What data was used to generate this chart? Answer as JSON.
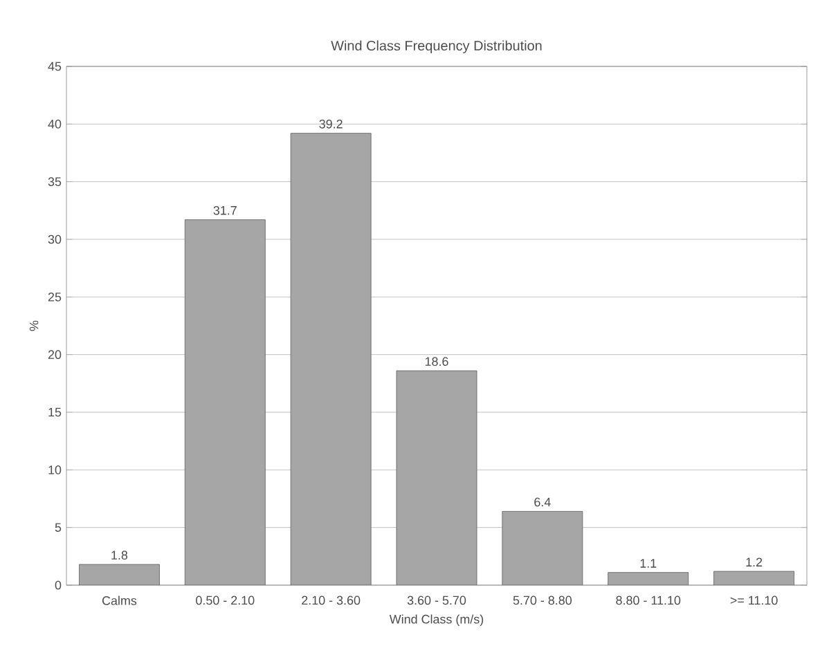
{
  "chart_data": {
    "type": "bar",
    "title": "Wind Class Frequency Distribution",
    "xlabel": "Wind Class (m/s)",
    "ylabel": "%",
    "categories": [
      "Calms",
      "0.50 - 2.10",
      "2.10 - 3.60",
      "3.60 - 5.70",
      "5.70 - 8.80",
      "8.80 - 11.10",
      ">= 11.10"
    ],
    "values": [
      1.8,
      31.7,
      39.2,
      18.6,
      6.4,
      1.1,
      1.2
    ],
    "color": "#a6a6a6",
    "ylim": [
      0,
      45
    ],
    "yticks": [
      0,
      5,
      10,
      15,
      20,
      25,
      30,
      35,
      40,
      45
    ],
    "grid": "y",
    "data_labels": true
  }
}
